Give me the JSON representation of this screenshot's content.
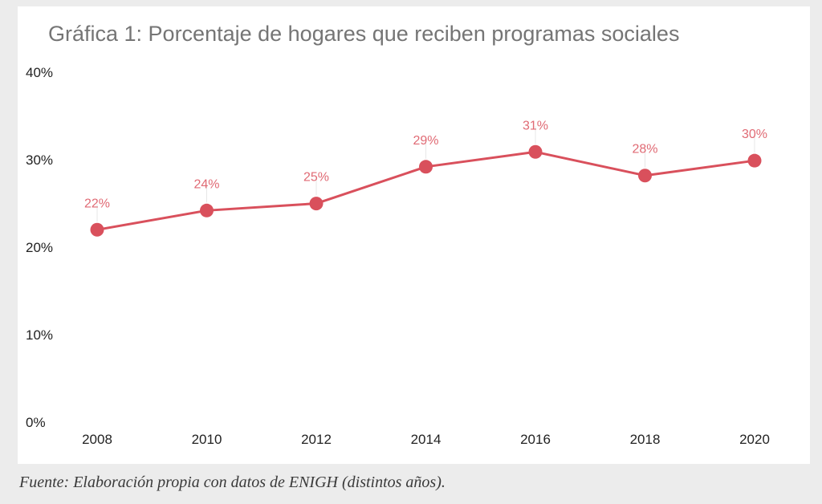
{
  "chart_data": {
    "type": "line",
    "title": "Gráfica 1: Porcentaje de hogares que reciben programas sociales",
    "categories": [
      "2008",
      "2010",
      "2012",
      "2014",
      "2016",
      "2018",
      "2020"
    ],
    "series": [
      {
        "values": [
          22,
          24,
          25,
          29,
          31,
          28,
          30
        ],
        "labels": [
          "22%",
          "24%",
          "25%",
          "29%",
          "31%",
          "28%",
          "30%"
        ],
        "color": "#d9505c"
      }
    ],
    "estimated_exact_values": [
      21.9,
      24.1,
      24.9,
      29.1,
      30.8,
      28.1,
      29.8
    ],
    "ylim": [
      0,
      40
    ],
    "yticks": [
      "0%",
      "10%",
      "20%",
      "30%",
      "40%"
    ],
    "xlabel": "",
    "ylabel": "",
    "grid": false,
    "legend": "none",
    "label_color": "#e06a74"
  },
  "caption": "Fuente: Elaboración propia con datos de ENIGH (distintos años)."
}
